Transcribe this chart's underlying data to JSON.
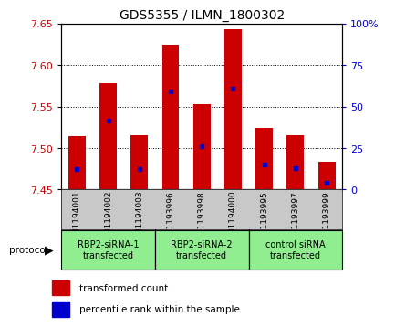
{
  "title": "GDS5355 / ILMN_1800302",
  "samples": [
    "GSM1194001",
    "GSM1194002",
    "GSM1194003",
    "GSM1193996",
    "GSM1193998",
    "GSM1194000",
    "GSM1193995",
    "GSM1193997",
    "GSM1193999"
  ],
  "bar_tops": [
    7.514,
    7.578,
    7.516,
    7.625,
    7.553,
    7.643,
    7.524,
    7.516,
    7.483
  ],
  "bar_bottoms": [
    7.45,
    7.45,
    7.45,
    7.45,
    7.45,
    7.45,
    7.45,
    7.45,
    7.45
  ],
  "blue_positions": [
    7.475,
    7.533,
    7.475,
    7.568,
    7.502,
    7.572,
    7.48,
    7.476,
    7.458
  ],
  "ylim": [
    7.45,
    7.65
  ],
  "yticks": [
    7.45,
    7.5,
    7.55,
    7.6,
    7.65
  ],
  "right_yticks": [
    0,
    25,
    50,
    75,
    100
  ],
  "right_ytick_labels": [
    "0",
    "25",
    "50",
    "75",
    "100%"
  ],
  "groups": [
    {
      "label": "RBP2-siRNA-1\ntransfected",
      "start": 0,
      "end": 3,
      "color": "#90EE90"
    },
    {
      "label": "RBP2-siRNA-2\ntransfected",
      "start": 3,
      "end": 6,
      "color": "#90EE90"
    },
    {
      "label": "control siRNA\ntransfected",
      "start": 6,
      "end": 9,
      "color": "#90EE90"
    }
  ],
  "bar_color": "#CC0000",
  "blue_color": "#0000CC",
  "bg_color": "#C8C8C8",
  "plot_bg": "#FFFFFF",
  "left_label_color": "#CC0000",
  "right_label_color": "#0000CC",
  "bar_width": 0.55
}
